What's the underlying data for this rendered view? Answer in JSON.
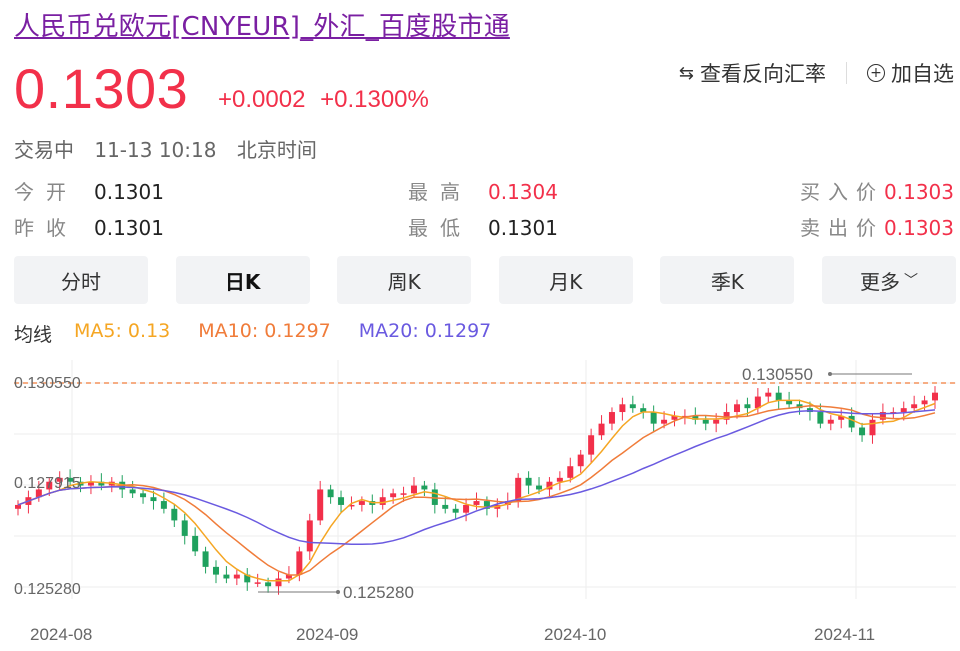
{
  "header": {
    "title": "人民币兑欧元[CNYEUR]_外汇_百度股市通",
    "price": "0.1303",
    "change_abs": "+0.0002",
    "change_pct": "+0.1300%",
    "status": "交易中",
    "datetime": "11-13 10:18",
    "timezone": "北京时间"
  },
  "actions": {
    "swap_label": "查看反向汇率",
    "add_label": "加自选"
  },
  "quote": {
    "open_label": "今开",
    "open_value": "0.1301",
    "high_label": "最高",
    "high_value": "0.1304",
    "bid_label": "买入价",
    "bid_value": "0.1303",
    "prev_label": "昨收",
    "prev_value": "0.1301",
    "low_label": "最低",
    "low_value": "0.1301",
    "ask_label": "卖出价",
    "ask_value": "0.1303"
  },
  "tabs": [
    "分时",
    "日K",
    "周K",
    "月K",
    "季K",
    "更多"
  ],
  "ma": {
    "label": "均线",
    "ma5": "MA5: 0.13",
    "ma10": "MA10: 0.1297",
    "ma20": "MA20: 0.1297"
  },
  "colors": {
    "up": "#f2304a",
    "down": "#1fa15e",
    "ma5": "#f5a623",
    "ma10": "#f07c3a",
    "ma20": "#6a5ae0",
    "ref_line": "#f07c3a"
  },
  "chart_data": {
    "type": "candlestick",
    "y_labels": [
      "0.130550",
      "0.127915",
      "0.125280"
    ],
    "ylim": [
      0.12528,
      0.13055
    ],
    "max_annotation": "0.130550",
    "min_annotation": "0.125280",
    "x_labels": [
      "2024-08",
      "2024-09",
      "2024-10",
      "2024-11"
    ],
    "closes": [
      0.1274,
      0.1276,
      0.1278,
      0.128,
      0.1281,
      0.128,
      0.1279,
      0.128,
      0.1279,
      0.128,
      0.1278,
      0.1277,
      0.1276,
      0.1275,
      0.1273,
      0.127,
      0.1266,
      0.1262,
      0.1258,
      0.1256,
      0.1255,
      0.1256,
      0.1254,
      0.1254,
      0.1253,
      0.1255,
      0.1256,
      0.1262,
      0.127,
      0.1278,
      0.1276,
      0.1274,
      0.1274,
      0.1275,
      0.1274,
      0.1276,
      0.1277,
      0.1277,
      0.1279,
      0.1278,
      0.1274,
      0.1273,
      0.1272,
      0.1274,
      0.1275,
      0.1273,
      0.1274,
      0.1275,
      0.1281,
      0.1279,
      0.1278,
      0.128,
      0.1281,
      0.1284,
      0.1287,
      0.1292,
      0.1295,
      0.1298,
      0.13,
      0.1299,
      0.1298,
      0.1295,
      0.1296,
      0.1297,
      0.1297,
      0.1296,
      0.1295,
      0.1296,
      0.1298,
      0.13,
      0.1299,
      0.1302,
      0.1303,
      0.1301,
      0.13,
      0.1299,
      0.1298,
      0.1295,
      0.1296,
      0.1297,
      0.1294,
      0.1292,
      0.1296,
      0.1298,
      0.1298,
      0.1299,
      0.13,
      0.1301,
      0.1303
    ]
  }
}
